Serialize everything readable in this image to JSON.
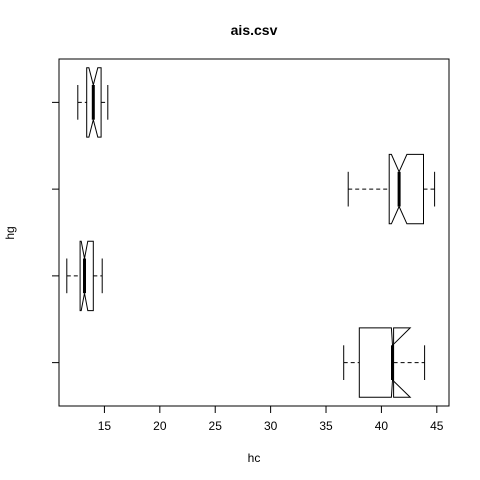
{
  "chart_data": {
    "type": "boxplot",
    "title": "ais.csv",
    "xlabel": "hc",
    "ylabel": "hg",
    "xlim": [
      10.9,
      46.1
    ],
    "x_ticks": [
      15,
      20,
      25,
      30,
      35,
      40,
      45
    ],
    "orientation": "horizontal",
    "notched": true,
    "grid": false,
    "legend": "none",
    "series_color": "#000000",
    "boxes": [
      {
        "whisker_low": 36.6,
        "q1": 38.0,
        "notch_low": 40.9,
        "median": 41.0,
        "notch_high": 42.6,
        "q3": 41.1,
        "whisker_high": 43.9
      },
      {
        "whisker_low": 11.6,
        "q1": 12.8,
        "notch_low": 12.9,
        "median": 13.2,
        "notch_high": 13.5,
        "q3": 14.0,
        "whisker_high": 14.8
      },
      {
        "whisker_low": 37.0,
        "q1": 40.7,
        "notch_low": 40.9,
        "median": 41.6,
        "notch_high": 42.3,
        "q3": 43.8,
        "whisker_high": 44.8
      },
      {
        "whisker_low": 12.6,
        "q1": 13.4,
        "notch_low": 13.6,
        "median": 14.0,
        "notch_high": 14.4,
        "q3": 14.7,
        "whisker_high": 15.3
      }
    ]
  }
}
